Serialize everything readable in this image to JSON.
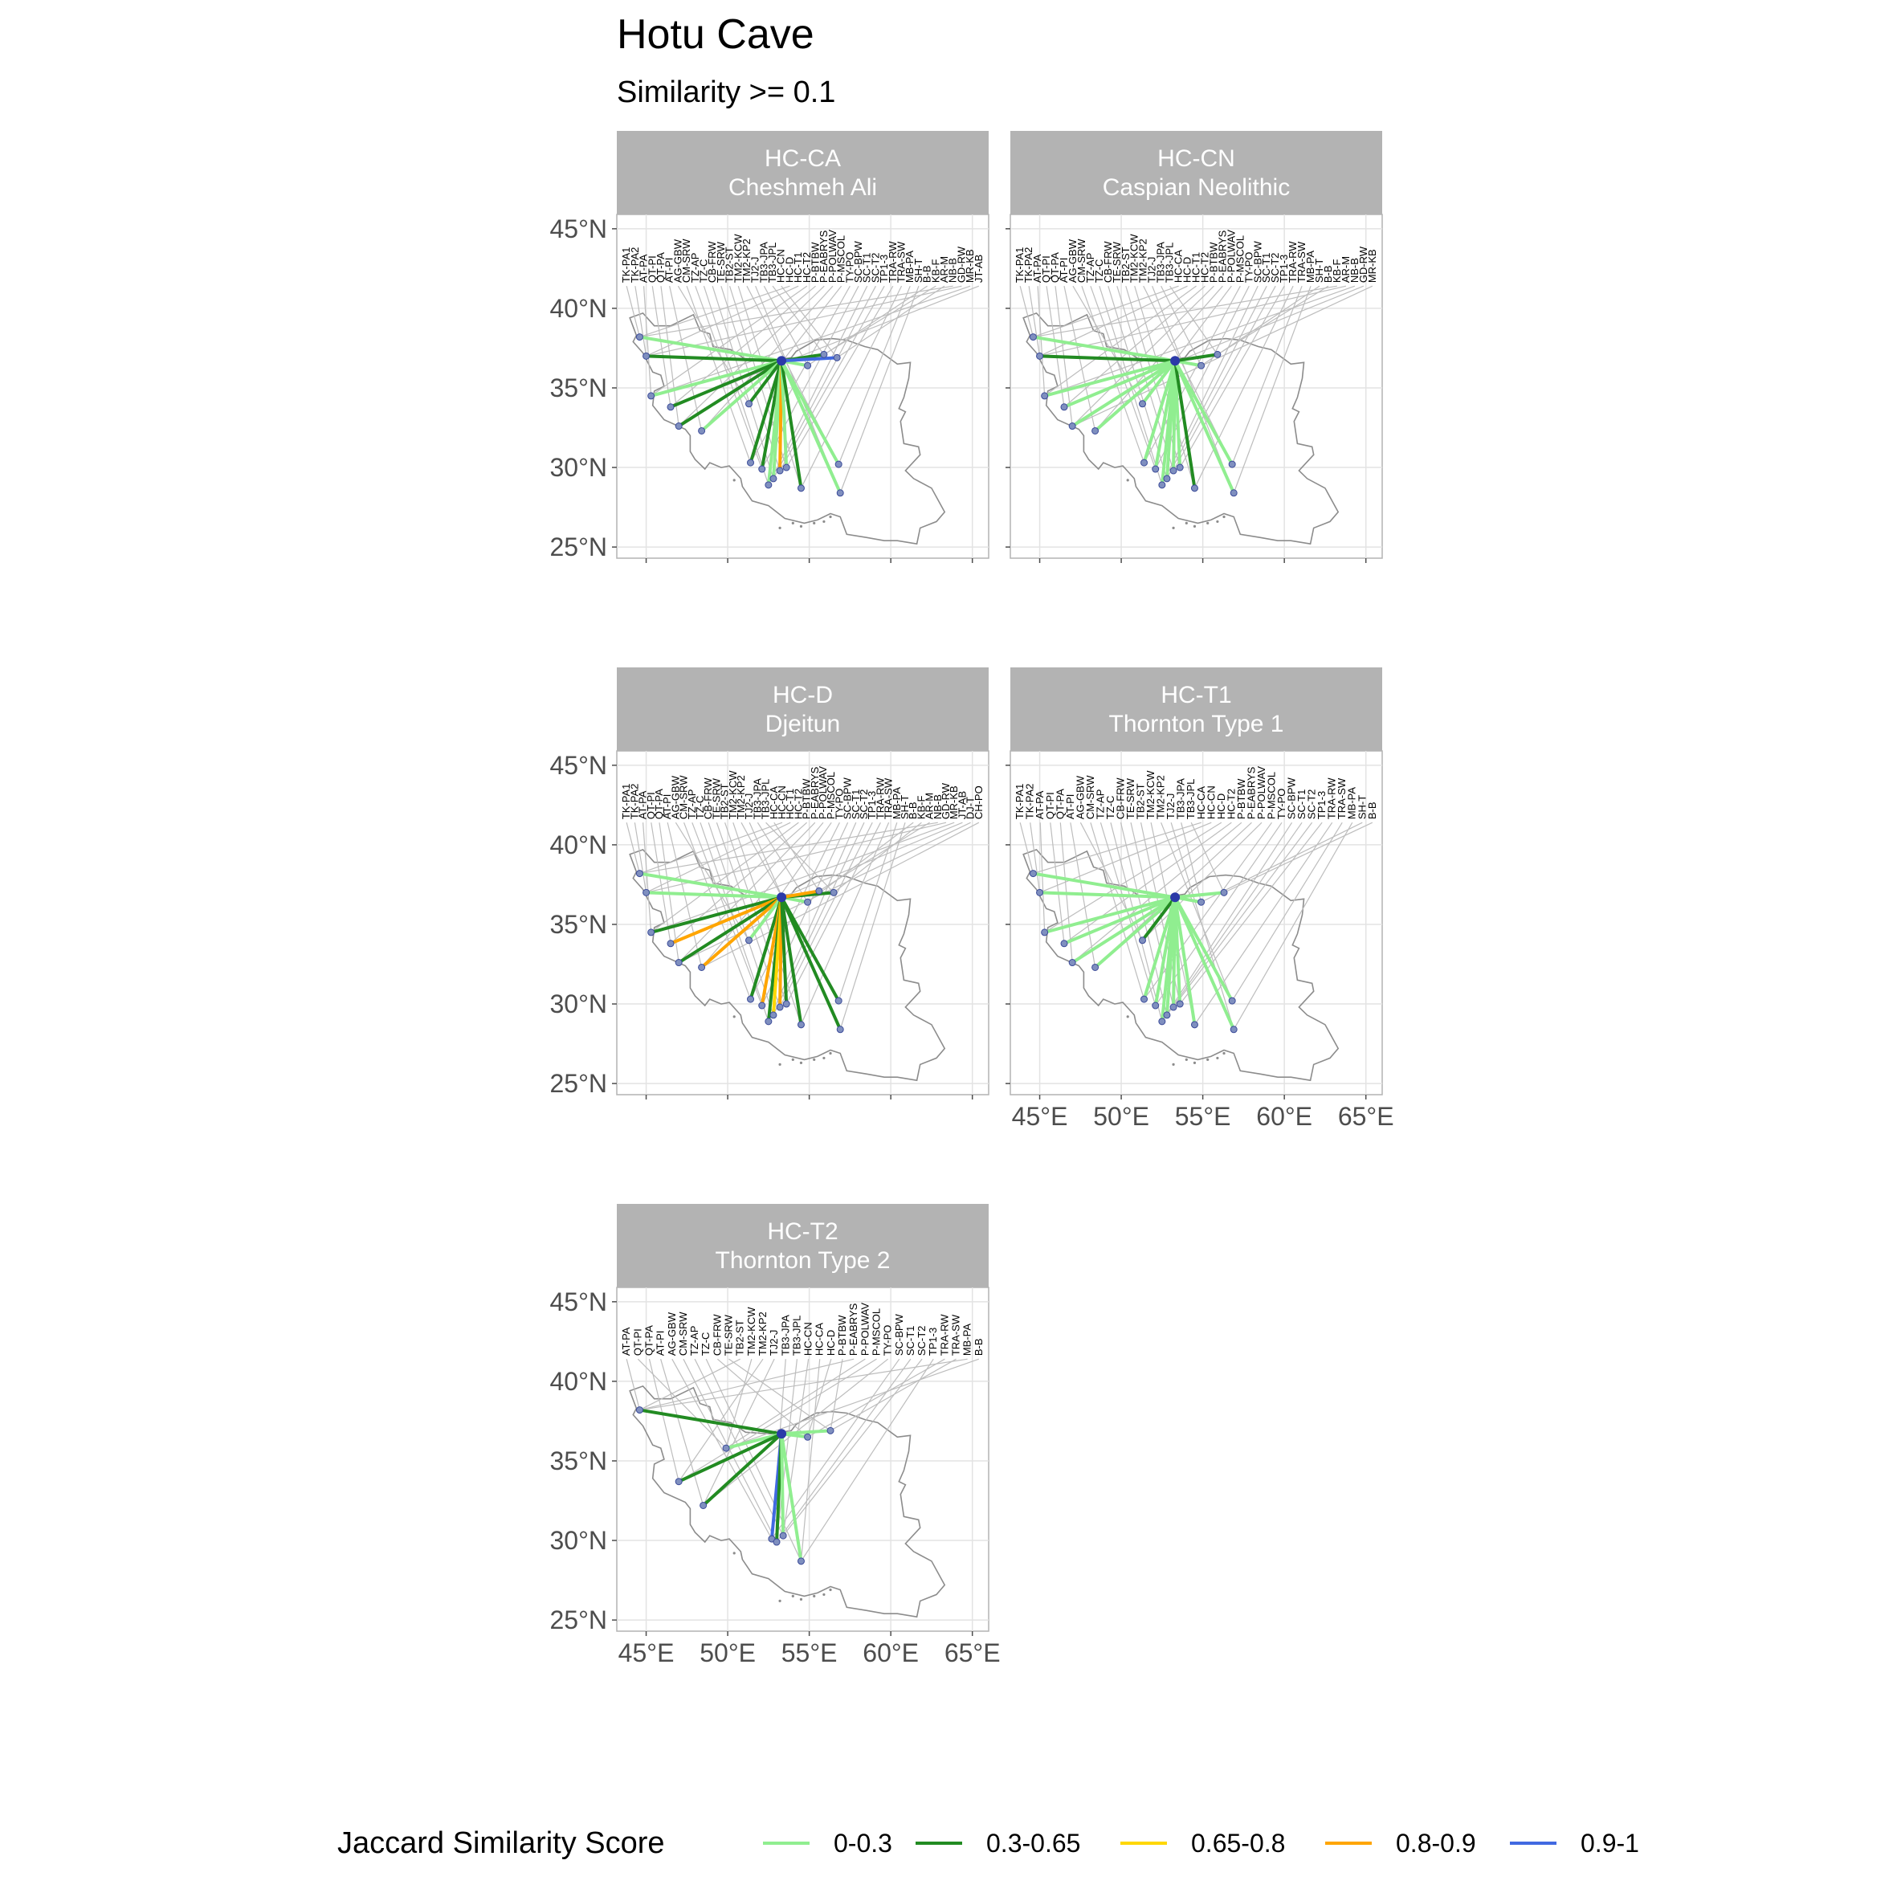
{
  "title": "Hotu Cave",
  "subtitle": "Similarity >= 0.1",
  "legend": {
    "title": "Jaccard Similarity Score",
    "items": [
      {
        "label": "0-0.3",
        "color": "#90ee90"
      },
      {
        "label": "0.3-0.65",
        "color": "#228b22"
      },
      {
        "label": "0.65-0.8",
        "color": "#ffd700"
      },
      {
        "label": "0.8-0.9",
        "color": "#ffa500"
      },
      {
        "label": "0.9-1",
        "color": "#4169e1"
      }
    ]
  },
  "axes": {
    "lat_ticks": [
      "45°N",
      "40°N",
      "35°N",
      "30°N",
      "25°N"
    ],
    "lon_ticks": [
      "45°E",
      "50°E",
      "55°E",
      "60°E",
      "65°E"
    ],
    "lat_values": [
      45,
      40,
      35,
      30,
      25
    ],
    "lon_values": [
      45,
      50,
      55,
      60,
      65
    ],
    "lon_range": [
      43.2,
      66.0
    ],
    "lat_range": [
      24.3,
      45.9
    ]
  },
  "origin": {
    "lon": 53.3,
    "lat": 36.7
  },
  "panels": [
    {
      "code": "HC-CA",
      "name": "Cheshmeh Ali",
      "links": [
        {
          "lon": 44.6,
          "lat": 38.2,
          "color": "#90ee90"
        },
        {
          "lon": 45.0,
          "lat": 37.0,
          "color": "#228b22"
        },
        {
          "lon": 45.3,
          "lat": 34.5,
          "color": "#90ee90"
        },
        {
          "lon": 46.5,
          "lat": 33.8,
          "color": "#228b22"
        },
        {
          "lon": 47.0,
          "lat": 32.6,
          "color": "#228b22"
        },
        {
          "lon": 48.4,
          "lat": 32.3,
          "color": "#90ee90"
        },
        {
          "lon": 51.3,
          "lat": 34.0,
          "color": "#228b22"
        },
        {
          "lon": 51.4,
          "lat": 30.3,
          "color": "#228b22"
        },
        {
          "lon": 52.1,
          "lat": 29.9,
          "color": "#228b22"
        },
        {
          "lon": 52.5,
          "lat": 28.9,
          "color": "#90ee90"
        },
        {
          "lon": 52.8,
          "lat": 29.3,
          "color": "#90ee90"
        },
        {
          "lon": 53.2,
          "lat": 29.8,
          "color": "#ffa500"
        },
        {
          "lon": 53.6,
          "lat": 30.0,
          "color": "#90ee90"
        },
        {
          "lon": 54.5,
          "lat": 28.7,
          "color": "#228b22"
        },
        {
          "lon": 56.8,
          "lat": 30.2,
          "color": "#90ee90"
        },
        {
          "lon": 56.9,
          "lat": 28.4,
          "color": "#90ee90"
        },
        {
          "lon": 54.9,
          "lat": 36.4,
          "color": "#90ee90"
        },
        {
          "lon": 55.9,
          "lat": 37.1,
          "color": "#228b22"
        },
        {
          "lon": 56.7,
          "lat": 36.9,
          "color": "#4169e1"
        }
      ],
      "labels": [
        "TK-PA1",
        "TK-PA2",
        "AT-PA",
        "QT-PI",
        "QT-PA",
        "AT-PI",
        "AG-GBW",
        "CM-SRW",
        "TZ-AP",
        "TZ-C",
        "CB-FRW",
        "TE-SRW",
        "TB2-ST",
        "TM2-KCW",
        "TM2-KP2",
        "TJ2-J",
        "TB3-JPA",
        "TB3-JPL",
        "HC-CN",
        "HC-D",
        "HC-T1",
        "HC-T2",
        "P-BTBW",
        "P-EABRYS",
        "P-POLWAV",
        "P-MSCOL",
        "TY-PO",
        "SC-BPW",
        "SC-T1",
        "SC-T2",
        "TP1-3",
        "TRA-RW",
        "TRA-SW",
        "MB-PA",
        "SH-T",
        "B-B",
        "KB-F",
        "AR-M",
        "NB-B",
        "GD-RW",
        "MR-KB",
        "JT-AB"
      ]
    },
    {
      "code": "HC-CN",
      "name": "Caspian Neolithic",
      "links": [
        {
          "lon": 44.6,
          "lat": 38.2,
          "color": "#90ee90"
        },
        {
          "lon": 45.0,
          "lat": 37.0,
          "color": "#228b22"
        },
        {
          "lon": 45.3,
          "lat": 34.5,
          "color": "#90ee90"
        },
        {
          "lon": 46.5,
          "lat": 33.8,
          "color": "#90ee90"
        },
        {
          "lon": 47.0,
          "lat": 32.6,
          "color": "#90ee90"
        },
        {
          "lon": 48.4,
          "lat": 32.3,
          "color": "#90ee90"
        },
        {
          "lon": 51.3,
          "lat": 34.0,
          "color": "#90ee90"
        },
        {
          "lon": 51.4,
          "lat": 30.3,
          "color": "#90ee90"
        },
        {
          "lon": 52.1,
          "lat": 29.9,
          "color": "#90ee90"
        },
        {
          "lon": 52.5,
          "lat": 28.9,
          "color": "#90ee90"
        },
        {
          "lon": 52.8,
          "lat": 29.3,
          "color": "#90ee90"
        },
        {
          "lon": 53.2,
          "lat": 29.8,
          "color": "#90ee90"
        },
        {
          "lon": 53.6,
          "lat": 30.0,
          "color": "#90ee90"
        },
        {
          "lon": 54.5,
          "lat": 28.7,
          "color": "#228b22"
        },
        {
          "lon": 56.8,
          "lat": 30.2,
          "color": "#90ee90"
        },
        {
          "lon": 56.9,
          "lat": 28.4,
          "color": "#90ee90"
        },
        {
          "lon": 54.9,
          "lat": 36.4,
          "color": "#90ee90"
        },
        {
          "lon": 55.9,
          "lat": 37.1,
          "color": "#228b22"
        }
      ],
      "labels": [
        "TK-PA1",
        "TK-PA2",
        "AT-PA",
        "QT-PI",
        "QT-PA",
        "AT-PI",
        "AG-GBW",
        "CM-SRW",
        "TZ-AP",
        "TZ-C",
        "CB-FRW",
        "TE-SRW",
        "TB2-ST",
        "TM2-KCW",
        "TM2-KP2",
        "TJ2-J",
        "TB3-JPA",
        "TB3-JPL",
        "HC-CA",
        "HC-D",
        "HC-T1",
        "HC-T2",
        "P-BTBW",
        "P-EABRYS",
        "P-POLWAV",
        "P-MSCOL",
        "TY-PO",
        "SC-BPW",
        "SC-T1",
        "SC-T2",
        "TP1-3",
        "TRA-RW",
        "TRA-SW",
        "MB-PA",
        "SH-T",
        "B-B",
        "KB-F",
        "AR-M",
        "NB-B",
        "GD-RW",
        "MR-KB"
      ]
    },
    {
      "code": "HC-D",
      "name": "Djeitun",
      "links": [
        {
          "lon": 44.6,
          "lat": 38.2,
          "color": "#90ee90"
        },
        {
          "lon": 45.0,
          "lat": 37.0,
          "color": "#90ee90"
        },
        {
          "lon": 45.3,
          "lat": 34.5,
          "color": "#228b22"
        },
        {
          "lon": 46.5,
          "lat": 33.8,
          "color": "#ffa500"
        },
        {
          "lon": 47.0,
          "lat": 32.6,
          "color": "#228b22"
        },
        {
          "lon": 48.4,
          "lat": 32.3,
          "color": "#ffa500"
        },
        {
          "lon": 51.3,
          "lat": 34.0,
          "color": "#90ee90"
        },
        {
          "lon": 51.4,
          "lat": 30.3,
          "color": "#228b22"
        },
        {
          "lon": 52.1,
          "lat": 29.9,
          "color": "#ffa500"
        },
        {
          "lon": 52.5,
          "lat": 28.9,
          "color": "#228b22"
        },
        {
          "lon": 52.8,
          "lat": 29.3,
          "color": "#ffd700"
        },
        {
          "lon": 53.2,
          "lat": 29.8,
          "color": "#ffa500"
        },
        {
          "lon": 53.6,
          "lat": 30.0,
          "color": "#228b22"
        },
        {
          "lon": 54.5,
          "lat": 28.7,
          "color": "#228b22"
        },
        {
          "lon": 56.8,
          "lat": 30.2,
          "color": "#228b22"
        },
        {
          "lon": 56.9,
          "lat": 28.4,
          "color": "#228b22"
        },
        {
          "lon": 54.9,
          "lat": 36.4,
          "color": "#90ee90"
        },
        {
          "lon": 56.5,
          "lat": 37.0,
          "color": "#228b22"
        },
        {
          "lon": 55.6,
          "lat": 37.1,
          "color": "#ffa500"
        }
      ],
      "labels": [
        "TK-PA1",
        "TK-PA2",
        "AT-PA",
        "QT-PI",
        "QT-PA",
        "AT-PI",
        "AG-GBW",
        "CM-SRW",
        "TZ-AP",
        "TZ-C",
        "CB-FRW",
        "TE-SRW",
        "TB2-ST",
        "TM2-KCW",
        "TM2-KP2",
        "TJ2-J",
        "TB3-JPA",
        "TB3-JPL",
        "HC-CA",
        "HC-CN",
        "HC-T1",
        "HC-T2",
        "P-BTBW",
        "P-EABRYS",
        "P-POLWAV",
        "P-MSCOL",
        "TY-PO",
        "SC-BPW",
        "SC-T1",
        "SC-T2",
        "TP1-3",
        "TRA-RW",
        "TRA-SW",
        "MB-PA",
        "SH-T",
        "B-B",
        "KB-F",
        "AR-M",
        "NB-B",
        "GD-RW",
        "MR-KB",
        "JT-AB",
        "DJ-T",
        "CH-PO"
      ]
    },
    {
      "code": "HC-T1",
      "name": "Thornton Type 1",
      "links": [
        {
          "lon": 44.6,
          "lat": 38.2,
          "color": "#90ee90"
        },
        {
          "lon": 45.0,
          "lat": 37.0,
          "color": "#90ee90"
        },
        {
          "lon": 45.3,
          "lat": 34.5,
          "color": "#90ee90"
        },
        {
          "lon": 46.5,
          "lat": 33.8,
          "color": "#90ee90"
        },
        {
          "lon": 47.0,
          "lat": 32.6,
          "color": "#90ee90"
        },
        {
          "lon": 48.4,
          "lat": 32.3,
          "color": "#90ee90"
        },
        {
          "lon": 51.3,
          "lat": 34.0,
          "color": "#228b22"
        },
        {
          "lon": 51.4,
          "lat": 30.3,
          "color": "#90ee90"
        },
        {
          "lon": 52.1,
          "lat": 29.9,
          "color": "#90ee90"
        },
        {
          "lon": 52.5,
          "lat": 28.9,
          "color": "#90ee90"
        },
        {
          "lon": 52.8,
          "lat": 29.3,
          "color": "#90ee90"
        },
        {
          "lon": 53.2,
          "lat": 29.8,
          "color": "#90ee90"
        },
        {
          "lon": 53.6,
          "lat": 30.0,
          "color": "#90ee90"
        },
        {
          "lon": 54.5,
          "lat": 28.7,
          "color": "#90ee90"
        },
        {
          "lon": 56.8,
          "lat": 30.2,
          "color": "#90ee90"
        },
        {
          "lon": 56.9,
          "lat": 28.4,
          "color": "#90ee90"
        },
        {
          "lon": 54.9,
          "lat": 36.4,
          "color": "#90ee90"
        },
        {
          "lon": 56.3,
          "lat": 37.0,
          "color": "#90ee90"
        }
      ],
      "labels": [
        "TK-PA1",
        "TK-PA2",
        "AT-PA",
        "QT-PI",
        "QT-PA",
        "AT-PI",
        "AG-GBW",
        "CM-SRW",
        "TZ-AP",
        "TZ-C",
        "CB-FRW",
        "TE-SRW",
        "TB2-ST",
        "TM2-KCW",
        "TM2-KP2",
        "TJ2-J",
        "TB3-JPA",
        "TB3-JPL",
        "HC-CA",
        "HC-CN",
        "HC-D",
        "HC-T2",
        "P-BTBW",
        "P-EABRYS",
        "P-POLWAV",
        "P-MSCOL",
        "TY-PO",
        "SC-BPW",
        "SC-T1",
        "SC-T2",
        "TP1-3",
        "TRA-RW",
        "TRA-SW",
        "MB-PA",
        "SH-T",
        "B-B"
      ]
    },
    {
      "code": "HC-T2",
      "name": "Thornton Type 2",
      "links": [
        {
          "lon": 44.6,
          "lat": 38.2,
          "color": "#228b22"
        },
        {
          "lon": 49.9,
          "lat": 35.8,
          "color": "#90ee90"
        },
        {
          "lon": 47.0,
          "lat": 33.7,
          "color": "#228b22"
        },
        {
          "lon": 48.5,
          "lat": 32.2,
          "color": "#228b22"
        },
        {
          "lon": 52.7,
          "lat": 30.1,
          "color": "#4169e1"
        },
        {
          "lon": 53.0,
          "lat": 29.9,
          "color": "#228b22"
        },
        {
          "lon": 53.4,
          "lat": 30.3,
          "color": "#90ee90"
        },
        {
          "lon": 54.5,
          "lat": 28.7,
          "color": "#90ee90"
        },
        {
          "lon": 54.9,
          "lat": 36.5,
          "color": "#90ee90"
        },
        {
          "lon": 56.3,
          "lat": 36.9,
          "color": "#90ee90"
        }
      ],
      "labels": [
        "AT-PA",
        "QT-PI",
        "QT-PA",
        "AT-PI",
        "AG-GBW",
        "CM-SRW",
        "TZ-AP",
        "TZ-C",
        "CB-FRW",
        "TE-SRW",
        "TB2-ST",
        "TM2-KCW",
        "TM2-KP2",
        "TJ2-J",
        "TB3-JPA",
        "TB3-JPL",
        "HC-CN",
        "HC-CA",
        "HC-D",
        "P-BTBW",
        "P-EABRYS",
        "P-POLWAV",
        "P-MSCOL",
        "TY-PO",
        "SC-BPW",
        "SC-T1",
        "SC-T2",
        "TP1-3",
        "TRA-RW",
        "TRA-SW",
        "MB-PA",
        "B-B"
      ]
    }
  ]
}
